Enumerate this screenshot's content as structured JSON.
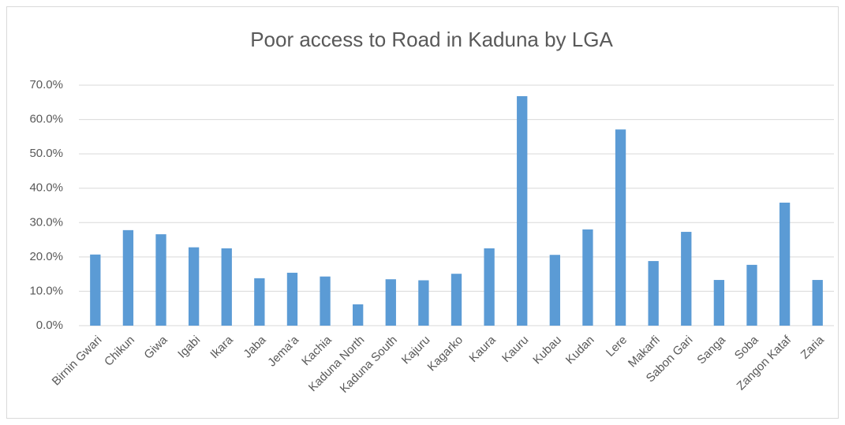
{
  "chart_data": {
    "type": "bar",
    "title": "Poor access to Road in Kaduna by LGA",
    "categories": [
      "Birnin Gwari",
      "Chikun",
      "Giwa",
      "Igabi",
      "Ikara",
      "Jaba",
      "Jema'a",
      "Kachia",
      "Kaduna North",
      "Kaduna South",
      "Kajuru",
      "Kagarko",
      "Kaura",
      "Kauru",
      "Kubau",
      "Kudan",
      "Lere",
      "Makarfi",
      "Sabon Gari",
      "Sanga",
      "Soba",
      "Zangon Kataf",
      "Zaria"
    ],
    "values": [
      20.7,
      27.8,
      26.6,
      22.8,
      22.5,
      13.8,
      15.4,
      14.3,
      6.2,
      13.5,
      13.2,
      15.1,
      22.5,
      66.8,
      20.6,
      28.0,
      57.1,
      18.8,
      27.3,
      13.3,
      17.7,
      35.8,
      13.3
    ],
    "color": "#5b9bd5",
    "ylim": [
      0,
      70
    ],
    "yticks": [
      {
        "value": 0,
        "label": "0.0%"
      },
      {
        "value": 10,
        "label": "10.0%"
      },
      {
        "value": 20,
        "label": "20.0%"
      },
      {
        "value": 30,
        "label": "30.0%"
      },
      {
        "value": 40,
        "label": "40.0%"
      },
      {
        "value": 50,
        "label": "50.0%"
      },
      {
        "value": 60,
        "label": "60.0%"
      },
      {
        "value": 70,
        "label": "70.0%"
      }
    ],
    "grid": true
  }
}
